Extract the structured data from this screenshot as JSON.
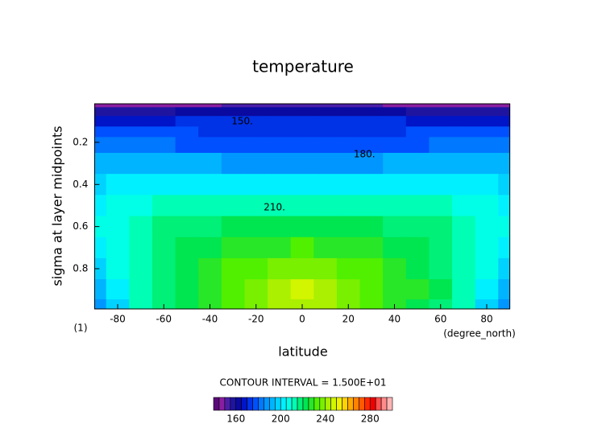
{
  "chart_data": {
    "type": "contour",
    "title": "temperature",
    "xlabel": "latitude",
    "ylabel": "sigma at layer midpoints",
    "x_units": "(degree_north)",
    "frame_label": "(1)",
    "subtitle": "CONTOUR INTERVAL = 1.500E+01",
    "x": [
      -90,
      -80,
      -70,
      -60,
      -50,
      -40,
      -30,
      -20,
      -10,
      0,
      10,
      20,
      30,
      40,
      50,
      60,
      70,
      80,
      90
    ],
    "y": [
      0.017,
      0.05,
      0.1,
      0.15,
      0.2,
      0.3,
      0.4,
      0.5,
      0.6,
      0.7,
      0.8,
      0.9,
      0.991
    ],
    "z": [
      [
        145,
        145,
        146,
        147,
        148,
        149,
        150,
        151,
        152,
        152,
        152,
        151,
        150,
        149,
        148,
        147,
        146,
        145,
        145
      ],
      [
        158,
        158,
        158,
        159,
        160,
        160,
        161,
        161,
        161,
        161,
        161,
        161,
        160,
        160,
        159,
        158,
        158,
        158,
        158
      ],
      [
        168,
        168,
        168,
        169,
        170,
        170,
        170,
        170,
        170,
        170,
        170,
        170,
        170,
        170,
        169,
        168,
        168,
        168,
        168
      ],
      [
        175,
        175,
        175,
        175,
        175,
        174,
        174,
        173,
        173,
        173,
        173,
        173,
        174,
        174,
        175,
        175,
        175,
        175,
        175
      ],
      [
        181,
        181,
        180,
        180,
        179,
        179,
        178,
        177,
        177,
        177,
        177,
        177,
        178,
        179,
        179,
        180,
        180,
        181,
        181
      ],
      [
        190,
        191,
        192,
        192,
        191,
        190,
        189,
        188,
        188,
        188,
        188,
        188,
        189,
        190,
        191,
        192,
        192,
        191,
        190
      ],
      [
        198,
        200,
        202,
        203,
        203,
        202,
        201,
        200,
        200,
        200,
        200,
        200,
        201,
        202,
        203,
        203,
        202,
        200,
        198
      ],
      [
        203,
        206,
        208,
        210,
        211,
        212,
        212,
        212,
        212,
        212,
        212,
        212,
        212,
        212,
        211,
        210,
        208,
        206,
        203
      ],
      [
        205,
        209,
        212,
        215,
        217,
        219,
        221,
        222,
        223,
        223,
        223,
        222,
        221,
        219,
        217,
        215,
        212,
        209,
        205
      ],
      [
        204,
        209,
        213,
        217,
        220,
        223,
        226,
        228,
        229,
        230,
        229,
        228,
        226,
        223,
        220,
        217,
        213,
        209,
        204
      ],
      [
        199,
        207,
        213,
        218,
        222,
        226,
        230,
        234,
        237,
        239,
        237,
        234,
        230,
        226,
        224,
        219,
        213,
        207,
        199
      ],
      [
        192,
        203,
        212,
        218,
        223,
        228,
        233,
        238,
        242,
        246,
        242,
        238,
        233,
        228,
        225,
        220,
        212,
        203,
        192
      ],
      [
        185,
        198,
        210,
        217,
        222,
        227,
        232,
        237,
        240,
        242,
        240,
        237,
        232,
        227,
        224,
        218,
        210,
        198,
        185
      ]
    ],
    "xlim": [
      -90,
      90
    ],
    "ylim": [
      0.991,
      0.017
    ],
    "xticks": [
      -80,
      -60,
      -40,
      -20,
      0,
      20,
      40,
      60,
      80
    ],
    "yticks": [
      0.2,
      0.4,
      0.6,
      0.8
    ],
    "annotations": [
      {
        "text": "150.",
        "x": -26,
        "y": 0.101
      },
      {
        "text": "180.",
        "x": 27,
        "y": 0.258
      },
      {
        "text": "210.",
        "x": -12,
        "y": 0.51
      }
    ],
    "colorbar": {
      "levels": [
        140,
        145,
        150,
        155,
        160,
        165,
        170,
        175,
        180,
        185,
        190,
        195,
        200,
        205,
        210,
        215,
        220,
        225,
        230,
        235,
        240,
        245,
        250,
        255,
        260,
        265,
        270,
        275,
        280,
        285,
        290,
        295,
        300
      ],
      "colors": [
        "#5a0a78",
        "#8a1ea0",
        "#4b1ea8",
        "#1e14a0",
        "#0a0aa0",
        "#0014c8",
        "#0032e6",
        "#0050ff",
        "#0078ff",
        "#0096ff",
        "#00b4ff",
        "#00d2ff",
        "#00f0ff",
        "#00ffe6",
        "#00ffb4",
        "#00f078",
        "#00e650",
        "#28e628",
        "#50f000",
        "#78f000",
        "#aaf000",
        "#d2f500",
        "#f0f000",
        "#ffd200",
        "#ffaa00",
        "#ff8200",
        "#ff5a00",
        "#ff2800",
        "#f00000",
        "#ff5050",
        "#ff8c8c",
        "#ffb4b4"
      ],
      "ticks": [
        160,
        200,
        240,
        280
      ]
    }
  }
}
